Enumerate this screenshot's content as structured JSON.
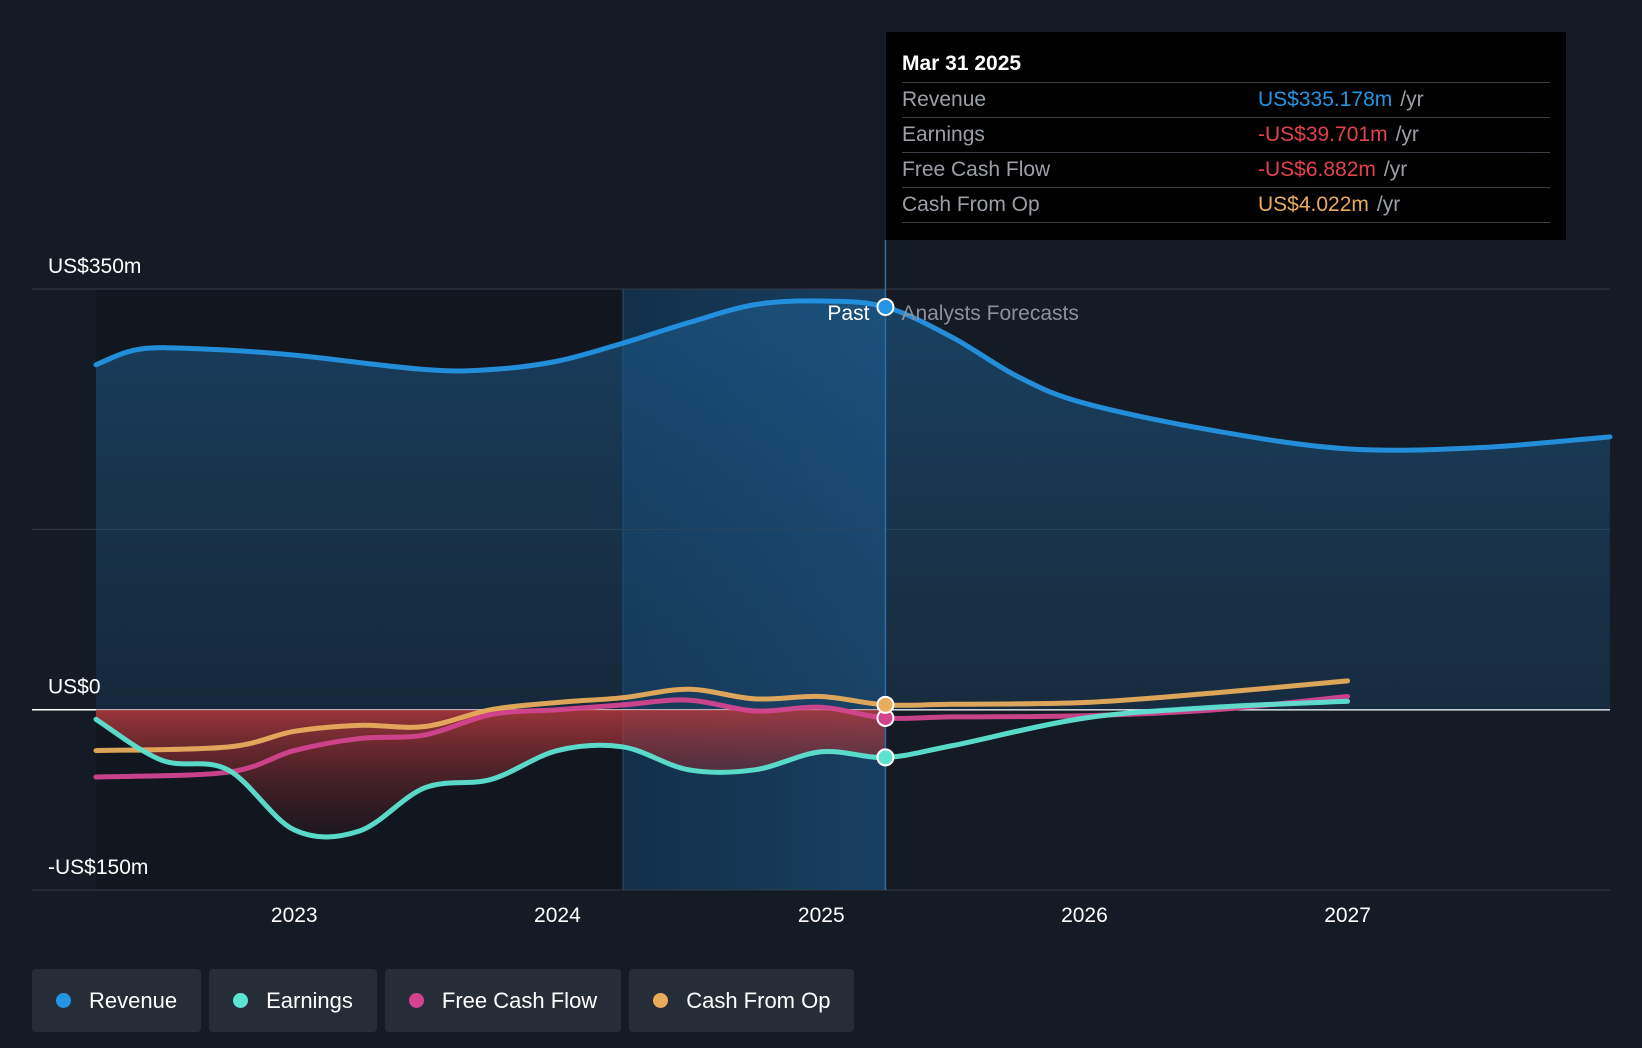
{
  "chart_data": {
    "type": "line",
    "y_axis": {
      "ylim": [
        -150,
        350
      ],
      "tick_labels": [
        "US$350m",
        "US$0",
        "-US$150m"
      ],
      "tick_values": [
        350,
        0,
        -150
      ],
      "gridlines": [
        350,
        150,
        0,
        -150
      ]
    },
    "x_axis": {
      "range": [
        "2022-04-01",
        "2027-12-31"
      ],
      "tick_labels": [
        "2023",
        "2024",
        "2025",
        "2026",
        "2027"
      ],
      "tick_dates": [
        "2023-01-01",
        "2024-01-01",
        "2025-01-01",
        "2026-01-01",
        "2027-01-01"
      ]
    },
    "past_label": "Past",
    "forecast_label": "Analysts Forecasts",
    "highlight_start": "2024-04-01",
    "divider_date": "2025-03-31",
    "series": [
      {
        "name": "Revenue",
        "color": "#2494e3",
        "fill": true,
        "points": [
          [
            "2022-04-01",
            287
          ],
          [
            "2022-06-01",
            300
          ],
          [
            "2022-09-01",
            300
          ],
          [
            "2023-01-01",
            295
          ],
          [
            "2023-07-01",
            283
          ],
          [
            "2023-10-01",
            283
          ],
          [
            "2024-01-01",
            290
          ],
          [
            "2024-04-01",
            305
          ],
          [
            "2024-07-01",
            322
          ],
          [
            "2024-10-01",
            337
          ],
          [
            "2025-01-01",
            340
          ],
          [
            "2025-03-31",
            335
          ],
          [
            "2025-07-01",
            310
          ],
          [
            "2025-10-01",
            277
          ],
          [
            "2026-01-01",
            255
          ],
          [
            "2026-07-01",
            232
          ],
          [
            "2027-01-01",
            217
          ],
          [
            "2027-07-01",
            218
          ],
          [
            "2027-12-31",
            227
          ]
        ]
      },
      {
        "name": "Earnings",
        "color": "#5de4d1",
        "points": [
          [
            "2022-04-01",
            -8
          ],
          [
            "2022-07-01",
            -42
          ],
          [
            "2022-10-01",
            -50
          ],
          [
            "2023-01-01",
            -100
          ],
          [
            "2023-04-01",
            -101
          ],
          [
            "2023-07-01",
            -65
          ],
          [
            "2023-10-01",
            -58
          ],
          [
            "2024-01-01",
            -34
          ],
          [
            "2024-04-01",
            -31
          ],
          [
            "2024-07-01",
            -50
          ],
          [
            "2024-10-01",
            -50
          ],
          [
            "2025-01-01",
            -35
          ],
          [
            "2025-03-31",
            -39.701
          ],
          [
            "2025-07-01",
            -30
          ],
          [
            "2026-01-01",
            -7
          ],
          [
            "2026-07-01",
            2
          ],
          [
            "2027-01-01",
            7
          ]
        ]
      },
      {
        "name": "Free Cash Flow",
        "color": "#d2458e",
        "points": [
          [
            "2022-04-01",
            -56
          ],
          [
            "2022-10-01",
            -52
          ],
          [
            "2023-01-01",
            -34
          ],
          [
            "2023-04-01",
            -24
          ],
          [
            "2023-07-01",
            -21
          ],
          [
            "2023-10-01",
            -4
          ],
          [
            "2024-01-01",
            0
          ],
          [
            "2024-04-01",
            4
          ],
          [
            "2024-07-01",
            8
          ],
          [
            "2024-10-01",
            -1
          ],
          [
            "2025-01-01",
            2
          ],
          [
            "2025-03-31",
            -6.882
          ],
          [
            "2025-07-01",
            -6
          ],
          [
            "2026-01-01",
            -5
          ],
          [
            "2026-07-01",
            0
          ],
          [
            "2027-01-01",
            11
          ]
        ]
      },
      {
        "name": "Cash From Op",
        "color": "#e8ac5c",
        "points": [
          [
            "2022-04-01",
            -34
          ],
          [
            "2022-10-01",
            -31
          ],
          [
            "2023-01-01",
            -18
          ],
          [
            "2023-04-01",
            -13
          ],
          [
            "2023-07-01",
            -14
          ],
          [
            "2023-10-01",
            0
          ],
          [
            "2024-01-01",
            6
          ],
          [
            "2024-04-01",
            10
          ],
          [
            "2024-07-01",
            17
          ],
          [
            "2024-10-01",
            9
          ],
          [
            "2025-01-01",
            11
          ],
          [
            "2025-03-31",
            4.022
          ],
          [
            "2025-07-01",
            4.5
          ],
          [
            "2026-01-01",
            6
          ],
          [
            "2026-07-01",
            14
          ],
          [
            "2027-01-01",
            24
          ]
        ]
      }
    ]
  },
  "tooltip": {
    "date": "Mar 31 2025",
    "rows": [
      {
        "label": "Revenue",
        "value": "US$335.178m",
        "unit": "/yr",
        "color": "#2494e3"
      },
      {
        "label": "Earnings",
        "value": "-US$39.701m",
        "unit": "/yr",
        "color": "#e2424c"
      },
      {
        "label": "Free Cash Flow",
        "value": "-US$6.882m",
        "unit": "/yr",
        "color": "#e2424c"
      },
      {
        "label": "Cash From Op",
        "value": "US$4.022m",
        "unit": "/yr",
        "color": "#e8ac5c"
      }
    ]
  },
  "legend": [
    {
      "label": "Revenue",
      "color": "#2494e3"
    },
    {
      "label": "Earnings",
      "color": "#5de4d1"
    },
    {
      "label": "Free Cash Flow",
      "color": "#d2458e"
    },
    {
      "label": "Cash From Op",
      "color": "#e8ac5c"
    }
  ]
}
